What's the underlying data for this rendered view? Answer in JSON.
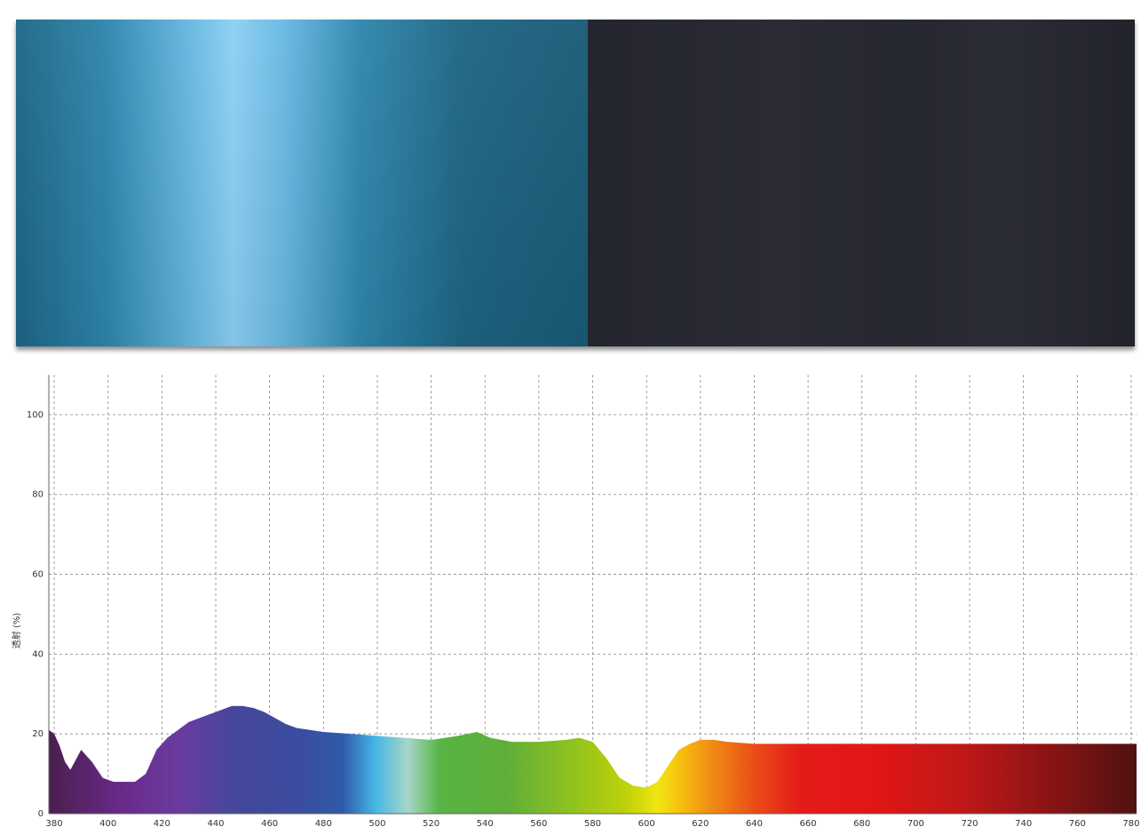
{
  "swatches": [
    {
      "name": "blue-swatch",
      "color": "#4aa6d2"
    },
    {
      "name": "dark-swatch",
      "color": "#282932"
    }
  ],
  "chart_data": {
    "type": "area",
    "title": "",
    "xlabel": "",
    "ylabel": "透射 (%)",
    "xlim": [
      378,
      782
    ],
    "ylim": [
      0,
      110
    ],
    "grid": true,
    "x_ticks": [
      380,
      400,
      420,
      440,
      460,
      480,
      500,
      520,
      540,
      560,
      580,
      600,
      620,
      640,
      660,
      680,
      700,
      720,
      740,
      760,
      780
    ],
    "y_ticks": [
      0,
      20,
      40,
      60,
      80,
      100
    ],
    "series": [
      {
        "x": [
          378,
          380,
          382,
          384,
          386,
          390,
          394,
          398,
          402,
          406,
          410,
          414,
          418,
          422,
          426,
          430,
          434,
          438,
          442,
          446,
          450,
          454,
          458,
          462,
          466,
          470,
          475,
          480,
          490,
          500,
          510,
          520,
          530,
          537,
          542,
          550,
          560,
          570,
          575,
          580,
          585,
          590,
          595,
          600,
          604,
          608,
          612,
          616,
          620,
          625,
          630,
          640,
          650,
          655,
          660,
          665,
          670,
          674,
          676,
          680,
          685,
          690,
          695,
          700,
          705,
          710,
          715,
          720,
          725,
          730,
          740,
          750,
          760,
          770,
          780,
          782
        ],
        "y": [
          21,
          20,
          17,
          13,
          11,
          16,
          13,
          9,
          8,
          8,
          8,
          10,
          16,
          19,
          21,
          23,
          24,
          25,
          26,
          27,
          27,
          26.5,
          25.5,
          24,
          22.5,
          21.5,
          21,
          20.5,
          20,
          19.5,
          19,
          18.5,
          19.5,
          20.5,
          19,
          18,
          18,
          18.5,
          19,
          18,
          14,
          9,
          7,
          6.5,
          8,
          12,
          16,
          17.5,
          18.5,
          18.5,
          18,
          17.5,
          17.5,
          17.5,
          17.5,
          17.5,
          17.5,
          17.5,
          17.5,
          17.5,
          17.5,
          17.5,
          17.5,
          17.5,
          17.5,
          17.5,
          17.5,
          17.5,
          17.5,
          17.5,
          17.5,
          17.5,
          17.5,
          17.5,
          17.5,
          17.5
        ]
      }
    ]
  }
}
